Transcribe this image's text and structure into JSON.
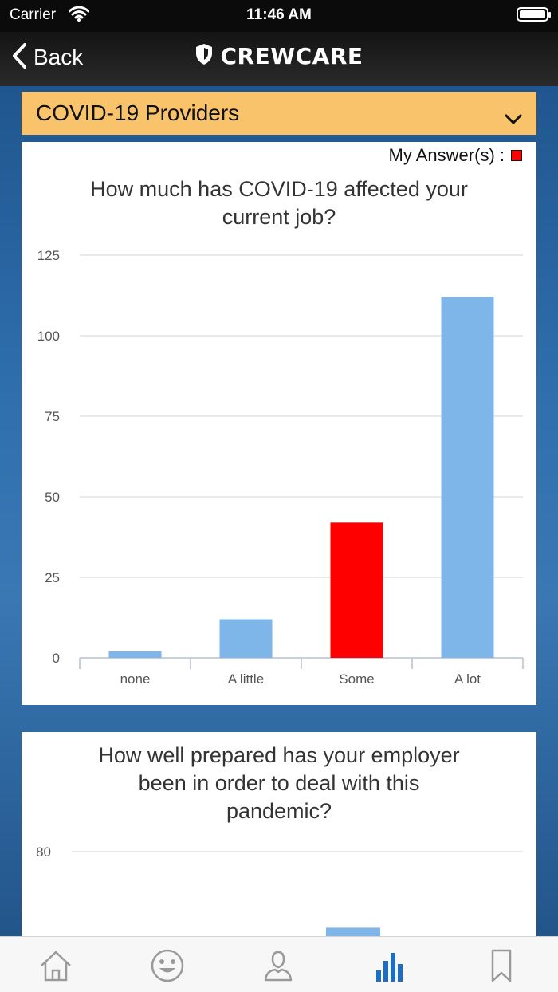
{
  "status_bar": {
    "carrier": "Carrier",
    "time": "11:46 AM"
  },
  "nav": {
    "back_label": "Back",
    "app_title": "CREWCARE"
  },
  "dropdown": {
    "selected": "COVID-19 Providers"
  },
  "legend": {
    "label": "My Answer(s) :",
    "color": "#ff0000"
  },
  "chart1": {
    "title_line1": "How much has COVID-19 affected your",
    "title_line2": "current job?"
  },
  "chart2": {
    "title_line1": "How well prepared has your employer",
    "title_line2": "been in order to deal with this",
    "title_line3": "pandemic?"
  },
  "chart_data": [
    {
      "type": "bar",
      "title": "How much has COVID-19 affected your current job?",
      "categories": [
        "none",
        "A little",
        "Some",
        "A lot"
      ],
      "values": [
        2,
        12,
        42,
        112
      ],
      "my_answer": "Some",
      "bar_color": "#7eb6ea",
      "my_answer_color": "#ff0000",
      "ylim": [
        0,
        125
      ],
      "yticks": [
        0,
        25,
        50,
        75,
        100,
        125
      ],
      "grid": true
    },
    {
      "type": "bar",
      "title": "How well prepared has your employer been in order to deal with this pandemic?",
      "categories": [],
      "visible_bar_value": 62,
      "bar_color": "#7eb6ea",
      "ylim": [
        0,
        80
      ],
      "yticks_visible": [
        80
      ],
      "grid": true
    }
  ],
  "tabs": [
    {
      "name": "home",
      "icon": "home-icon",
      "active": false
    },
    {
      "name": "mood",
      "icon": "smiley-icon",
      "active": false
    },
    {
      "name": "profile",
      "icon": "person-icon",
      "active": false
    },
    {
      "name": "stats",
      "icon": "bar-chart-icon",
      "active": true
    },
    {
      "name": "saved",
      "icon": "bookmark-icon",
      "active": false
    }
  ],
  "colors": {
    "accent": "#1a6fc4",
    "dropdown_bg": "#f9c36c",
    "tab_inactive": "#9a9a9a"
  }
}
